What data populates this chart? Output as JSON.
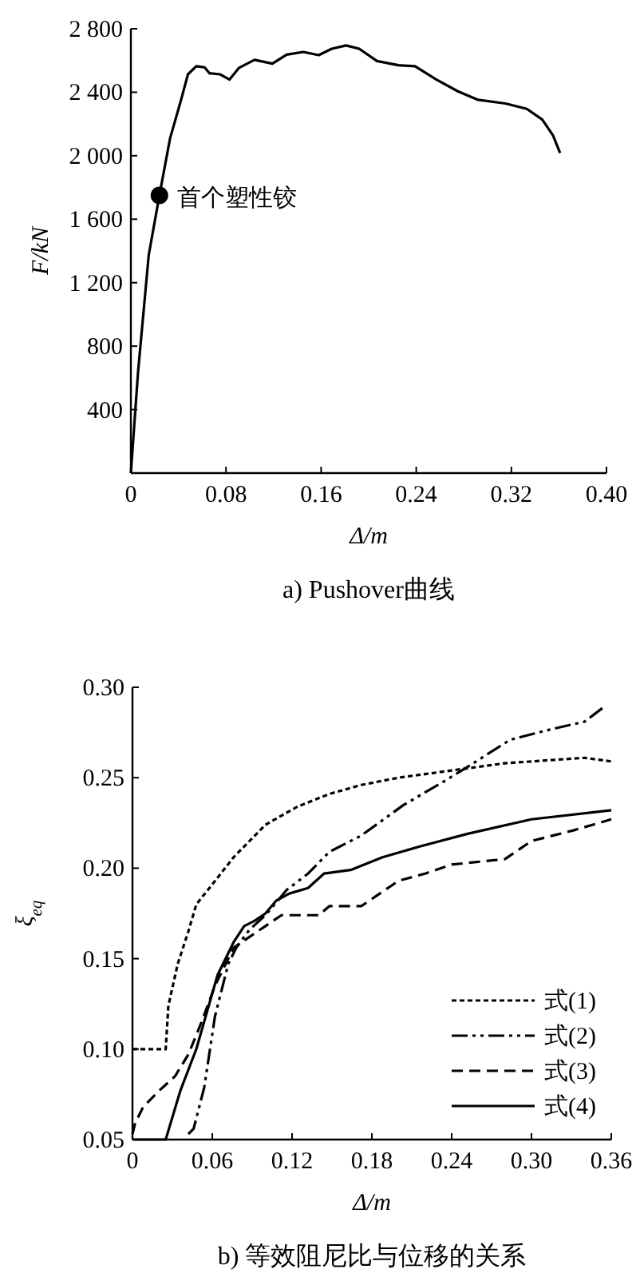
{
  "chart_data": [
    {
      "type": "line",
      "title": "a) Pushover曲线",
      "xlabel": "Δ/m",
      "ylabel": "F/kN",
      "xlim": [
        0,
        0.4
      ],
      "ylim": [
        0,
        2800
      ],
      "xticks": [
        0,
        0.08,
        0.16,
        0.24,
        0.32,
        {
          "value": 0.4,
          "label": "0.40"
        }
      ],
      "yticks": [
        400,
        800,
        {
          "value": 1200,
          "label": "1 200"
        },
        {
          "value": 1600,
          "label": "1 600"
        },
        {
          "value": 2000,
          "label": "2 000"
        },
        {
          "value": 2400,
          "label": "2 400"
        },
        {
          "value": 2800,
          "label": "2 800"
        }
      ],
      "grid": false,
      "legend": false,
      "series": [
        {
          "color": "#000000",
          "line_style": "solid",
          "x": [
            0,
            0.006,
            0.015,
            0.024,
            0.033,
            0.042,
            0.048,
            0.055,
            0.062,
            0.066,
            0.075,
            0.083,
            0.091,
            0.104,
            0.119,
            0.131,
            0.145,
            0.158,
            0.169,
            0.181,
            0.192,
            0.207,
            0.225,
            0.239,
            0.257,
            0.275,
            0.292,
            0.315,
            0.333,
            0.346,
            0.355,
            0.361
          ],
          "values": [
            0,
            634,
            1372,
            1750,
            2111,
            2346,
            2513,
            2564,
            2557,
            2520,
            2513,
            2480,
            2554,
            2604,
            2580,
            2637,
            2654,
            2634,
            2674,
            2695,
            2674,
            2597,
            2570,
            2564,
            2480,
            2406,
            2352,
            2329,
            2295,
            2228,
            2128,
            2017
          ]
        },
        {
          "type": "scatter",
          "marker": "circle",
          "color": "#000000",
          "x": [
            0.024
          ],
          "values": [
            1750
          ]
        }
      ],
      "annotations": [
        {
          "text": "首个塑性铰",
          "x": 0.024,
          "y": 1750
        }
      ]
    },
    {
      "type": "line",
      "title": "b) 等效阻尼比与位移的关系",
      "xlabel": "Δ/m",
      "ylabel": "ξ$_{eq}$",
      "xlim": [
        0,
        0.36
      ],
      "ylim": [
        0.05,
        0.3
      ],
      "xticks": [
        0,
        0.06,
        0.12,
        0.18,
        0.24,
        {
          "value": 0.3,
          "label": "0.30"
        },
        0.36
      ],
      "yticks": [
        0.05,
        {
          "value": 0.1,
          "label": "0.10"
        },
        0.15,
        {
          "value": 0.2,
          "label": "0.20"
        },
        0.25,
        {
          "value": 0.3,
          "label": "0.30"
        }
      ],
      "grid": false,
      "legend": "bottom right",
      "series": [
        {
          "name": "式(1)",
          "color": "#000000",
          "line_style": "dotted",
          "x": [
            0,
            0.025,
            0.027,
            0.034,
            0.042,
            0.048,
            0.06,
            0.076,
            0.1,
            0.124,
            0.148,
            0.172,
            0.2,
            0.24,
            0.28,
            0.34,
            0.36
          ],
          "values": [
            0.1,
            0.1,
            0.124,
            0.147,
            0.165,
            0.18,
            0.191,
            0.206,
            0.224,
            0.234,
            0.241,
            0.246,
            0.25,
            0.254,
            0.258,
            0.261,
            0.259
          ]
        },
        {
          "name": "式(2)",
          "color": "#000000",
          "line_style": "dashdot",
          "x": [
            0.042,
            0.046,
            0.054,
            0.062,
            0.072,
            0.078,
            0.088,
            0.1,
            0.116,
            0.132,
            0.148,
            0.172,
            0.204,
            0.232,
            0.252,
            0.284,
            0.316,
            0.34,
            0.356
          ],
          "values": [
            0.053,
            0.056,
            0.079,
            0.118,
            0.147,
            0.156,
            0.166,
            0.174,
            0.188,
            0.197,
            0.209,
            0.218,
            0.235,
            0.247,
            0.256,
            0.271,
            0.277,
            0.281,
            0.29
          ]
        },
        {
          "name": "式(3)",
          "color": "#000000",
          "line_style": "dashed",
          "x": [
            0,
            0.002,
            0.008,
            0.02,
            0.032,
            0.042,
            0.052,
            0.062,
            0.076,
            0.088,
            0.1,
            0.112,
            0.14,
            0.148,
            0.172,
            0.184,
            0.2,
            0.22,
            0.24,
            0.28,
            0.3,
            0.332,
            0.36
          ],
          "values": [
            0.053,
            0.059,
            0.068,
            0.077,
            0.085,
            0.097,
            0.115,
            0.135,
            0.156,
            0.162,
            0.168,
            0.174,
            0.174,
            0.179,
            0.179,
            0.185,
            0.193,
            0.197,
            0.202,
            0.205,
            0.215,
            0.221,
            0.227
          ]
        },
        {
          "name": "式(4)",
          "color": "#000000",
          "line_style": "solid",
          "x": [
            0,
            0.025,
            0.036,
            0.048,
            0.064,
            0.076,
            0.084,
            0.092,
            0.1,
            0.108,
            0.118,
            0.132,
            0.144,
            0.164,
            0.188,
            0.216,
            0.252,
            0.3,
            0.36
          ],
          "values": [
            0.05,
            0.05,
            0.077,
            0.1,
            0.141,
            0.159,
            0.168,
            0.171,
            0.175,
            0.182,
            0.186,
            0.189,
            0.197,
            0.199,
            0.206,
            0.212,
            0.219,
            0.227,
            0.232
          ]
        }
      ]
    }
  ]
}
